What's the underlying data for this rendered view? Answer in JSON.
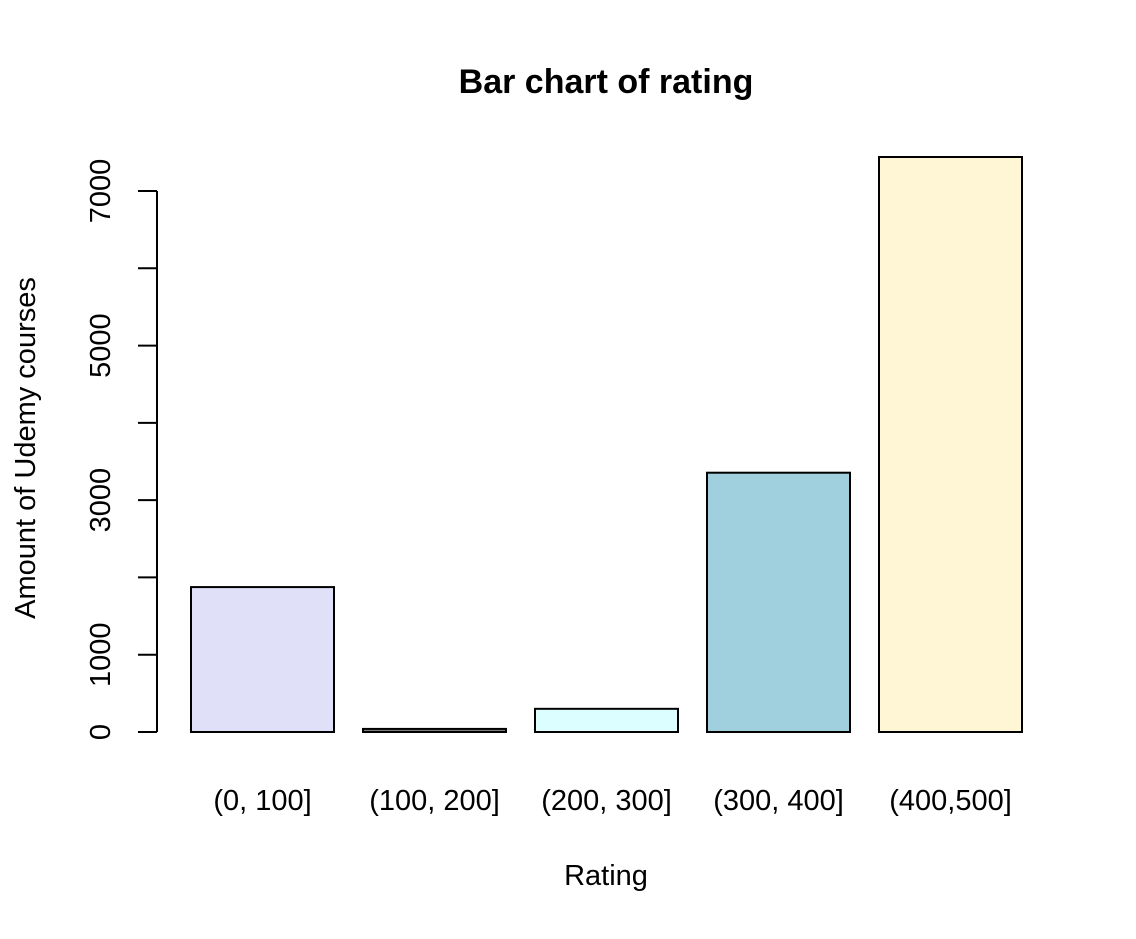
{
  "chart_data": {
    "type": "bar",
    "title": "Bar chart of rating",
    "xlabel": "Rating",
    "ylabel": "Amount of Udemy courses",
    "categories": [
      "(0, 100]",
      "(100, 200]",
      "(200, 300]",
      "(300, 400]",
      "(400,500]"
    ],
    "values": [
      1875,
      40,
      300,
      3355,
      7440
    ],
    "colors": [
      "#e0e0f8",
      "#808080",
      "#dcfefe",
      "#a0cfde",
      "#fff6d6"
    ],
    "bar_outline_color": "#000000",
    "yticks": [
      0,
      1000,
      3000,
      5000,
      7000
    ],
    "yticks_minor": [
      2000,
      4000,
      6000
    ],
    "ylim": [
      0,
      7440
    ],
    "grid": false,
    "legend": "none"
  }
}
